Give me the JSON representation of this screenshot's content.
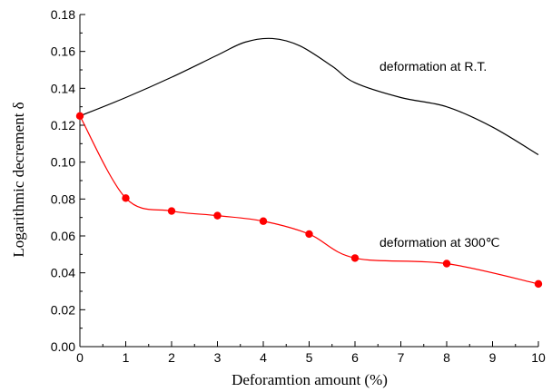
{
  "chart_data": {
    "type": "line",
    "xlabel": "Deforamtion amount (%)",
    "ylabel": "Logarithmic decrement  δ",
    "xlim": [
      0,
      10
    ],
    "ylim": [
      0,
      0.18
    ],
    "xticks": [
      "0",
      "1",
      "2",
      "3",
      "4",
      "5",
      "6",
      "7",
      "8",
      "9",
      "10"
    ],
    "yticks": [
      "0.00",
      "0.02",
      "0.04",
      "0.06",
      "0.08",
      "0.10",
      "0.12",
      "0.14",
      "0.16",
      "0.18"
    ],
    "grid": false,
    "series": [
      {
        "annotation": "deformation at R.T.",
        "color": "#000000",
        "markers": false,
        "x": [
          0,
          1,
          2,
          3,
          3.6,
          4.2,
          4.8,
          5.5,
          6,
          7,
          8,
          9,
          10
        ],
        "y": [
          0.125,
          0.135,
          0.146,
          0.158,
          0.165,
          0.167,
          0.163,
          0.152,
          0.143,
          0.135,
          0.13,
          0.119,
          0.104
        ]
      },
      {
        "annotation": "deformation at 300℃",
        "color": "#ff0000",
        "markers": true,
        "x": [
          0,
          1,
          2,
          3,
          4,
          5,
          6,
          8,
          10
        ],
        "y": [
          0.125,
          0.0805,
          0.0735,
          0.071,
          0.068,
          0.061,
          0.048,
          0.045,
          0.034
        ]
      }
    ]
  }
}
